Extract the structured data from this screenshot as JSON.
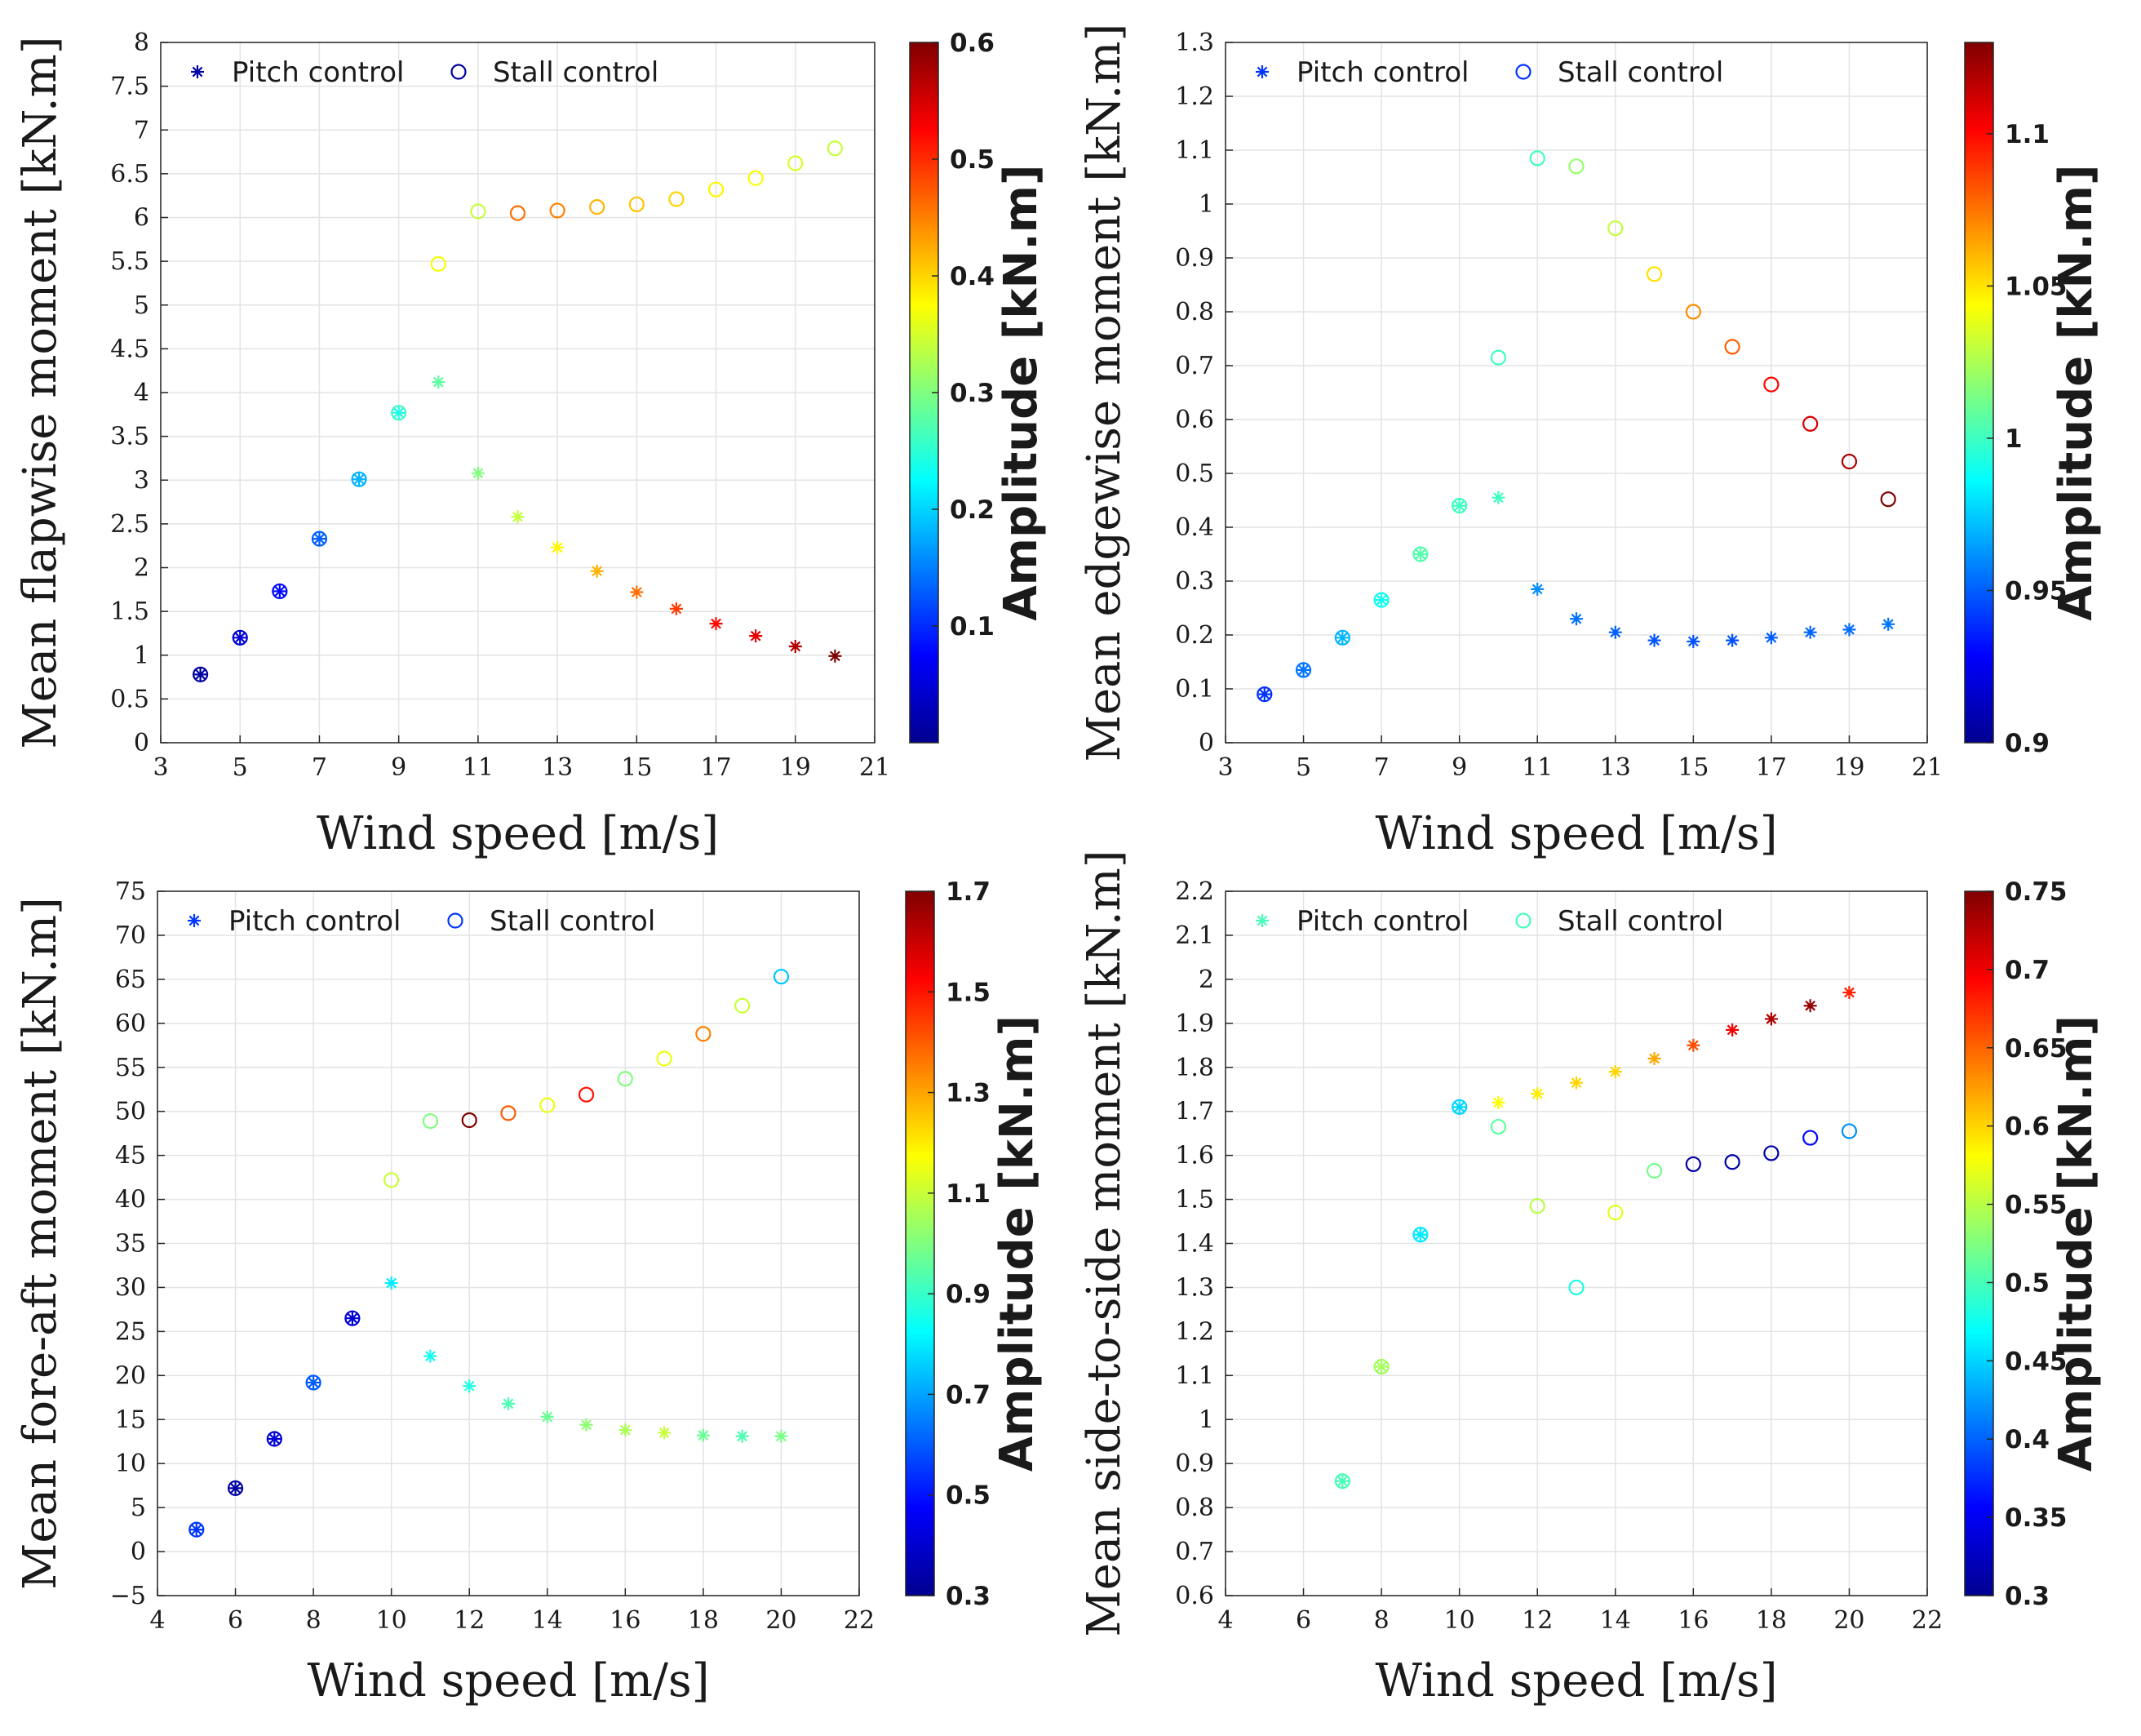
{
  "chart_data": [
    {
      "type": "scatter",
      "ylabel": "Mean flapwise moment [kN.m]",
      "xlabel": "Wind speed [m/s]",
      "xlim": [
        3,
        21
      ],
      "ylim": [
        0,
        8
      ],
      "xticks": [
        3,
        5,
        7,
        9,
        11,
        13,
        15,
        17,
        19,
        21
      ],
      "yticks": [
        0,
        0.5,
        1,
        1.5,
        2,
        2.5,
        3,
        3.5,
        4,
        4.5,
        5,
        5.5,
        6,
        6.5,
        7,
        7.5,
        8
      ],
      "grid": true,
      "legend_position": "top-left",
      "colorbar": {
        "label": "Amplitude [kN.m]",
        "range": [
          0,
          0.6
        ],
        "ticks": [
          0.1,
          0.2,
          0.3,
          0.4,
          0.5,
          0.6
        ],
        "colormap": "jet"
      },
      "series": [
        {
          "name": "Pitch control",
          "marker": "asterisk",
          "x": [
            4,
            5,
            6,
            7,
            8,
            9,
            10,
            11,
            12,
            13,
            14,
            15,
            16,
            17,
            18,
            19,
            20
          ],
          "y": [
            0.78,
            1.2,
            1.73,
            2.33,
            3.01,
            3.77,
            4.12,
            3.08,
            2.58,
            2.23,
            1.96,
            1.72,
            1.53,
            1.36,
            1.22,
            1.1,
            0.99
          ],
          "amplitude": [
            0.02,
            0.05,
            0.08,
            0.13,
            0.18,
            0.24,
            0.28,
            0.3,
            0.34,
            0.38,
            0.42,
            0.46,
            0.49,
            0.52,
            0.54,
            0.57,
            0.6
          ]
        },
        {
          "name": "Stall control",
          "marker": "circle",
          "x": [
            4,
            5,
            6,
            7,
            8,
            9,
            10,
            11,
            12,
            13,
            14,
            15,
            16,
            17,
            18,
            19,
            20
          ],
          "y": [
            0.78,
            1.2,
            1.73,
            2.33,
            3.01,
            3.77,
            5.47,
            6.07,
            6.05,
            6.08,
            6.12,
            6.15,
            6.21,
            6.32,
            6.45,
            6.62,
            6.79
          ],
          "amplitude": [
            0.02,
            0.05,
            0.08,
            0.13,
            0.18,
            0.26,
            0.37,
            0.34,
            0.46,
            0.45,
            0.42,
            0.41,
            0.4,
            0.38,
            0.37,
            0.35,
            0.34
          ]
        }
      ]
    },
    {
      "type": "scatter",
      "ylabel": "Mean edgewise moment [kN.m]",
      "xlabel": "Wind speed [m/s]",
      "xlim": [
        3,
        21
      ],
      "ylim": [
        0,
        1.3
      ],
      "xticks": [
        3,
        5,
        7,
        9,
        11,
        13,
        15,
        17,
        19,
        21
      ],
      "yticks": [
        0,
        0.1,
        0.2,
        0.3,
        0.4,
        0.5,
        0.6,
        0.7,
        0.8,
        0.9,
        1,
        1.1,
        1.2,
        1.3
      ],
      "grid": true,
      "legend_position": "top-left",
      "colorbar": {
        "label": "Amplitude [kN.m]",
        "range": [
          0.9,
          1.13
        ],
        "ticks": [
          0.9,
          0.95,
          1,
          1.05,
          1.1
        ],
        "colormap": "jet"
      },
      "series": [
        {
          "name": "Pitch control",
          "marker": "asterisk",
          "x": [
            4,
            5,
            6,
            7,
            8,
            9,
            10,
            11,
            12,
            13,
            14,
            15,
            16,
            17,
            18,
            19,
            20
          ],
          "y": [
            0.09,
            0.135,
            0.195,
            0.265,
            0.35,
            0.44,
            0.455,
            0.285,
            0.23,
            0.205,
            0.19,
            0.188,
            0.19,
            0.195,
            0.205,
            0.21,
            0.22
          ],
          "amplitude": [
            0.94,
            0.955,
            0.97,
            0.99,
            1.005,
            1.0,
            1.0,
            0.96,
            0.955,
            0.95,
            0.948,
            0.947,
            0.947,
            0.95,
            0.952,
            0.953,
            0.955
          ]
        },
        {
          "name": "Stall control",
          "marker": "circle",
          "x": [
            4,
            5,
            6,
            7,
            8,
            9,
            10,
            11,
            12,
            13,
            14,
            15,
            16,
            17,
            18,
            19,
            20
          ],
          "y": [
            0.09,
            0.135,
            0.195,
            0.265,
            0.35,
            0.44,
            0.715,
            1.085,
            1.07,
            0.955,
            0.87,
            0.8,
            0.735,
            0.665,
            0.592,
            0.522,
            0.452
          ],
          "amplitude": [
            0.94,
            0.955,
            0.97,
            0.99,
            1.005,
            1.0,
            1.0,
            1.0,
            1.02,
            1.03,
            1.05,
            1.07,
            1.08,
            1.1,
            1.11,
            1.12,
            1.13
          ]
        }
      ]
    },
    {
      "type": "scatter",
      "ylabel": "Mean fore-aft moment [kN.m]",
      "xlabel": "Wind speed [m/s]",
      "xlim": [
        4,
        22
      ],
      "ylim": [
        -5,
        75
      ],
      "xticks": [
        4,
        6,
        8,
        10,
        12,
        14,
        16,
        18,
        20,
        22
      ],
      "yticks": [
        -5,
        0,
        5,
        10,
        15,
        20,
        25,
        30,
        35,
        40,
        45,
        50,
        55,
        60,
        65,
        70,
        75
      ],
      "grid": true,
      "legend_position": "top-left",
      "colorbar": {
        "label": "Amplitude [kN.m]",
        "range": [
          0.3,
          1.7
        ],
        "ticks": [
          0.3,
          0.5,
          0.7,
          0.9,
          1.1,
          1.3,
          1.5,
          1.7
        ],
        "colormap": "jet"
      },
      "series": [
        {
          "name": "Pitch control",
          "marker": "asterisk",
          "x": [
            5,
            6,
            7,
            8,
            9,
            10,
            11,
            12,
            13,
            14,
            15,
            16,
            17,
            18,
            19,
            20
          ],
          "y": [
            2.5,
            7.2,
            12.8,
            19.2,
            26.5,
            30.5,
            22.2,
            18.8,
            16.8,
            15.3,
            14.4,
            13.8,
            13.5,
            13.2,
            13.1,
            13.1
          ],
          "amplitude": [
            0.55,
            0.35,
            0.42,
            0.6,
            0.42,
            0.8,
            0.85,
            0.87,
            0.93,
            0.97,
            1.02,
            1.06,
            1.1,
            0.97,
            0.93,
            0.99
          ]
        },
        {
          "name": "Stall control",
          "marker": "circle",
          "x": [
            5,
            6,
            7,
            8,
            9,
            10,
            11,
            12,
            13,
            14,
            15,
            16,
            17,
            18,
            19,
            20
          ],
          "y": [
            2.5,
            7.2,
            12.8,
            19.2,
            26.5,
            42.2,
            48.9,
            49.0,
            49.8,
            50.7,
            51.9,
            53.7,
            56.0,
            58.8,
            62.0,
            65.3
          ],
          "amplitude": [
            0.55,
            0.35,
            0.42,
            0.6,
            0.42,
            1.1,
            1.0,
            1.7,
            1.4,
            1.15,
            1.5,
            1.0,
            1.15,
            1.35,
            1.1,
            0.75
          ]
        }
      ]
    },
    {
      "type": "scatter",
      "ylabel": "Mean side-to-side moment [kN.m]",
      "xlabel": "Wind speed [m/s]",
      "xlim": [
        4,
        22
      ],
      "ylim": [
        0.6,
        2.2
      ],
      "xticks": [
        4,
        6,
        8,
        10,
        12,
        14,
        16,
        18,
        20,
        22
      ],
      "yticks": [
        0.6,
        0.7,
        0.8,
        0.9,
        1,
        1.1,
        1.2,
        1.3,
        1.4,
        1.5,
        1.6,
        1.7,
        1.8,
        1.9,
        2,
        2.1,
        2.2
      ],
      "grid": true,
      "legend_position": "top-left",
      "colorbar": {
        "label": "Amplitude [kN.m]",
        "range": [
          0.3,
          0.75
        ],
        "ticks": [
          0.3,
          0.35,
          0.4,
          0.45,
          0.5,
          0.55,
          0.6,
          0.65,
          0.7,
          0.75
        ],
        "colormap": "jet"
      },
      "series": [
        {
          "name": "Pitch control",
          "marker": "asterisk",
          "x": [
            7,
            8,
            9,
            10,
            11,
            12,
            13,
            14,
            15,
            16,
            17,
            18,
            19,
            20
          ],
          "y": [
            0.86,
            1.12,
            1.42,
            1.71,
            1.72,
            1.74,
            1.765,
            1.79,
            1.82,
            1.85,
            1.885,
            1.91,
            1.94,
            1.97
          ],
          "amplitude": [
            0.5,
            0.54,
            0.46,
            0.45,
            0.58,
            0.59,
            0.6,
            0.6,
            0.62,
            0.66,
            0.7,
            0.73,
            0.74,
            0.68
          ]
        },
        {
          "name": "Stall control",
          "marker": "circle",
          "x": [
            7,
            8,
            9,
            10,
            11,
            12,
            13,
            14,
            15,
            16,
            17,
            18,
            19,
            20
          ],
          "y": [
            0.86,
            1.12,
            1.42,
            1.71,
            1.665,
            1.485,
            1.3,
            1.47,
            1.565,
            1.58,
            1.585,
            1.605,
            1.64,
            1.655
          ],
          "amplitude": [
            0.5,
            0.54,
            0.46,
            0.45,
            0.51,
            0.55,
            0.48,
            0.57,
            0.52,
            0.32,
            0.32,
            0.32,
            0.36,
            0.42
          ]
        }
      ]
    }
  ]
}
